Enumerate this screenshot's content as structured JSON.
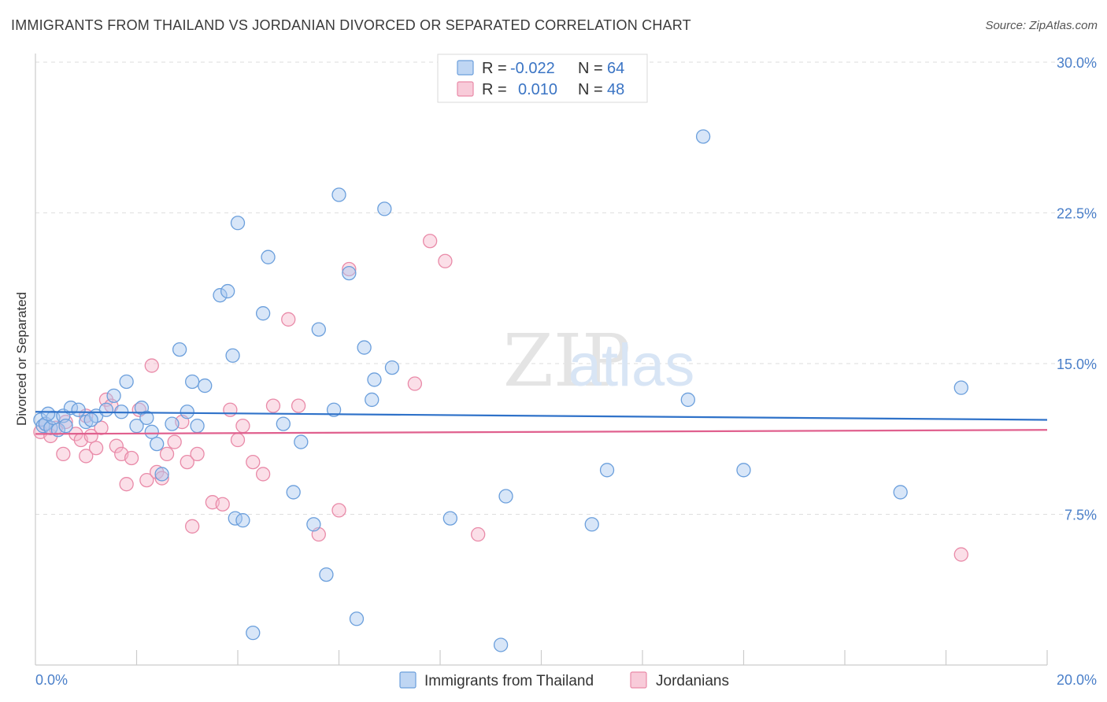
{
  "header": {
    "title": "IMMIGRANTS FROM THAILAND VS JORDANIAN DIVORCED OR SEPARATED CORRELATION CHART",
    "source": "Source: ZipAtlas.com"
  },
  "watermark": {
    "zip": "ZIP",
    "atlas": "atlas"
  },
  "legend_top": {
    "rows": [
      {
        "r_label": "R =",
        "r_value": "-0.022",
        "n_label": "N =",
        "n_value": "64"
      },
      {
        "r_label": "R =",
        "r_value": "0.010",
        "n_label": "N =",
        "n_value": "48"
      }
    ]
  },
  "colors": {
    "blue_fill": "#a9c8ef",
    "blue_stroke": "#6b9fdc",
    "blue_line": "#2f72c9",
    "pink_fill": "#f6b9cc",
    "pink_stroke": "#e98aa8",
    "pink_line": "#e0608e",
    "accent_text": "#3a74c4"
  },
  "chart_data": {
    "type": "scatter",
    "title": "IMMIGRANTS FROM THAILAND VS JORDANIAN DIVORCED OR SEPARATED CORRELATION CHART",
    "xlabel": "",
    "ylabel": "Divorced or Separated",
    "xlim": [
      0,
      20
    ],
    "ylim": [
      0,
      30
    ],
    "x_tick_labels": [
      "0.0%",
      "20.0%"
    ],
    "y_ticks": [
      7.5,
      15.0,
      22.5,
      30.0
    ],
    "y_tick_labels": [
      "7.5%",
      "15.0%",
      "22.5%",
      "30.0%"
    ],
    "grid": "horizontal dashed",
    "legend_placement": "top-center",
    "series": [
      {
        "name": "Immigrants from Thailand",
        "r": -0.022,
        "n": 64,
        "trend": [
          [
            0,
            12.6
          ],
          [
            20,
            12.2
          ]
        ],
        "points": [
          [
            0.1,
            12.2
          ],
          [
            0.15,
            11.9
          ],
          [
            0.2,
            12.0
          ],
          [
            0.3,
            11.8
          ],
          [
            0.35,
            12.3
          ],
          [
            0.45,
            11.7
          ],
          [
            0.55,
            12.4
          ],
          [
            0.7,
            12.8
          ],
          [
            0.85,
            12.7
          ],
          [
            1.0,
            12.1
          ],
          [
            1.2,
            12.4
          ],
          [
            1.4,
            12.7
          ],
          [
            1.55,
            13.4
          ],
          [
            1.8,
            14.1
          ],
          [
            2.1,
            12.8
          ],
          [
            2.0,
            11.9
          ],
          [
            2.3,
            11.6
          ],
          [
            2.4,
            11.0
          ],
          [
            2.5,
            9.5
          ],
          [
            2.7,
            12.0
          ],
          [
            2.85,
            15.7
          ],
          [
            3.0,
            12.6
          ],
          [
            3.1,
            14.1
          ],
          [
            3.2,
            11.9
          ],
          [
            3.35,
            13.9
          ],
          [
            3.65,
            18.4
          ],
          [
            3.8,
            18.6
          ],
          [
            3.9,
            15.4
          ],
          [
            3.95,
            7.3
          ],
          [
            4.0,
            22.0
          ],
          [
            4.1,
            7.2
          ],
          [
            4.3,
            1.6
          ],
          [
            4.5,
            17.5
          ],
          [
            4.6,
            20.3
          ],
          [
            4.9,
            12.0
          ],
          [
            5.1,
            8.6
          ],
          [
            5.25,
            11.1
          ],
          [
            5.5,
            7.0
          ],
          [
            5.6,
            16.7
          ],
          [
            5.75,
            4.5
          ],
          [
            5.9,
            12.7
          ],
          [
            6.0,
            23.4
          ],
          [
            6.2,
            19.5
          ],
          [
            6.35,
            2.3
          ],
          [
            6.5,
            15.8
          ],
          [
            6.65,
            13.2
          ],
          [
            6.7,
            14.2
          ],
          [
            6.9,
            22.7
          ],
          [
            7.05,
            14.8
          ],
          [
            8.2,
            7.3
          ],
          [
            9.2,
            1.0
          ],
          [
            9.3,
            8.4
          ],
          [
            11.0,
            7.0
          ],
          [
            11.3,
            9.7
          ],
          [
            12.9,
            13.2
          ],
          [
            13.2,
            26.3
          ],
          [
            14.0,
            9.7
          ],
          [
            17.1,
            8.6
          ],
          [
            18.3,
            13.8
          ],
          [
            0.25,
            12.5
          ],
          [
            0.6,
            11.9
          ],
          [
            1.1,
            12.2
          ],
          [
            1.7,
            12.6
          ],
          [
            2.2,
            12.3
          ]
        ]
      },
      {
        "name": "Jordanians",
        "r": 0.01,
        "n": 48,
        "trend": [
          [
            0,
            11.5
          ],
          [
            20,
            11.7
          ]
        ],
        "points": [
          [
            0.1,
            11.6
          ],
          [
            0.2,
            12.0
          ],
          [
            0.3,
            11.4
          ],
          [
            0.4,
            11.8
          ],
          [
            0.55,
            10.5
          ],
          [
            0.6,
            12.1
          ],
          [
            0.8,
            11.5
          ],
          [
            0.9,
            11.2
          ],
          [
            1.0,
            10.4
          ],
          [
            1.1,
            11.4
          ],
          [
            1.2,
            10.8
          ],
          [
            1.3,
            11.8
          ],
          [
            1.4,
            13.2
          ],
          [
            1.5,
            12.9
          ],
          [
            1.6,
            10.9
          ],
          [
            1.7,
            10.5
          ],
          [
            1.8,
            9.0
          ],
          [
            1.9,
            10.3
          ],
          [
            2.05,
            12.7
          ],
          [
            2.2,
            9.2
          ],
          [
            2.3,
            14.9
          ],
          [
            2.4,
            9.6
          ],
          [
            2.5,
            9.3
          ],
          [
            2.6,
            10.5
          ],
          [
            2.75,
            11.1
          ],
          [
            2.9,
            12.1
          ],
          [
            3.0,
            10.1
          ],
          [
            3.1,
            6.9
          ],
          [
            3.2,
            10.5
          ],
          [
            3.5,
            8.1
          ],
          [
            3.7,
            8.0
          ],
          [
            3.85,
            12.7
          ],
          [
            4.0,
            11.2
          ],
          [
            4.1,
            11.9
          ],
          [
            4.3,
            10.1
          ],
          [
            4.5,
            9.5
          ],
          [
            4.7,
            12.9
          ],
          [
            5.0,
            17.2
          ],
          [
            5.2,
            12.9
          ],
          [
            5.6,
            6.5
          ],
          [
            6.0,
            7.7
          ],
          [
            6.2,
            19.7
          ],
          [
            7.5,
            14.0
          ],
          [
            7.8,
            21.1
          ],
          [
            8.1,
            20.1
          ],
          [
            8.75,
            6.5
          ],
          [
            18.3,
            5.5
          ],
          [
            1.0,
            12.4
          ]
        ]
      }
    ]
  }
}
